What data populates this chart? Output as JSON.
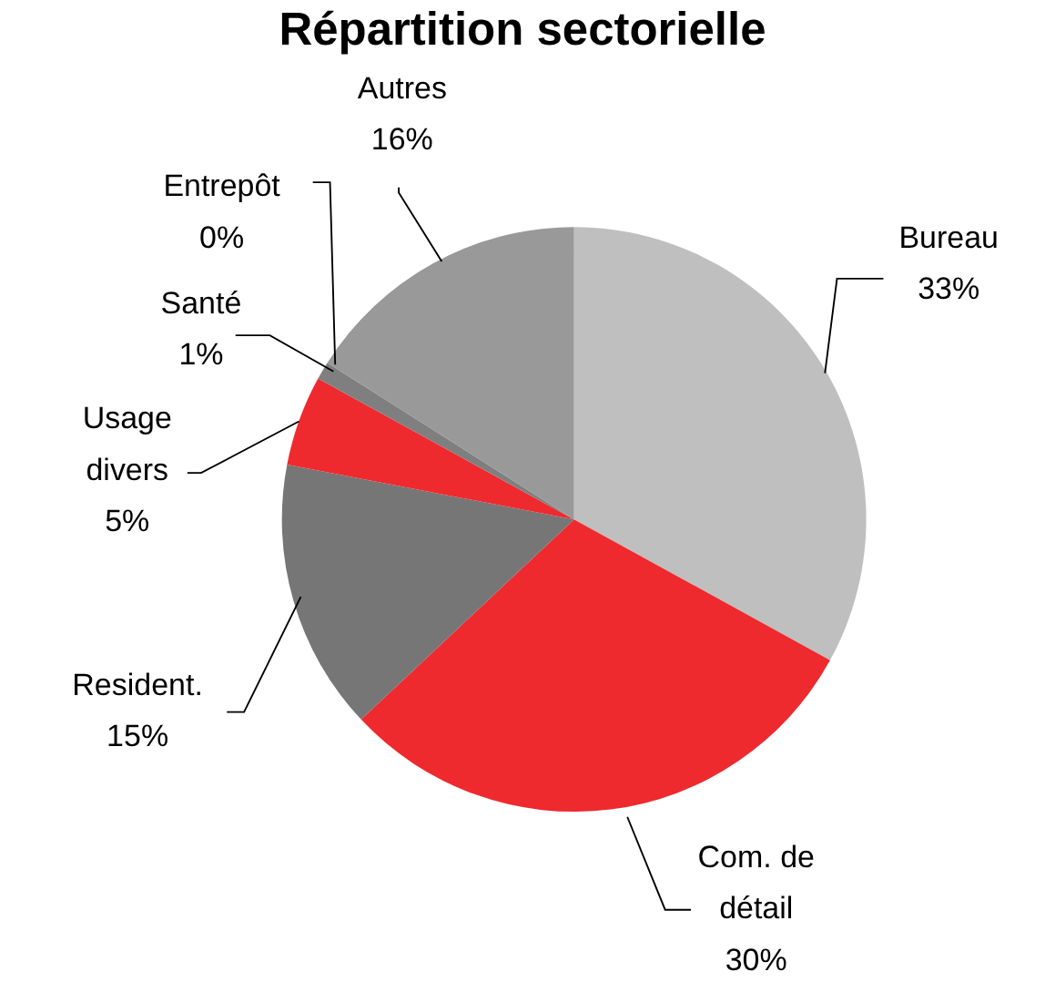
{
  "chart_data": {
    "type": "pie",
    "title": "Répartition sectorielle",
    "categories": [
      "Bureau",
      "Com. de détail",
      "Resident.",
      "Usage divers",
      "Santé",
      "Entrepôt",
      "Autres"
    ],
    "values": [
      33,
      30,
      15,
      5,
      1,
      0,
      16
    ],
    "colors": [
      "#bfbfbf",
      "#ee2a2e",
      "#767676",
      "#ee2a2e",
      "#7f7f7f",
      "#f4a6a6",
      "#999999"
    ],
    "value_labels": [
      "33%",
      "30%",
      "15%",
      "5%",
      "1%",
      "0%",
      "16%"
    ]
  }
}
